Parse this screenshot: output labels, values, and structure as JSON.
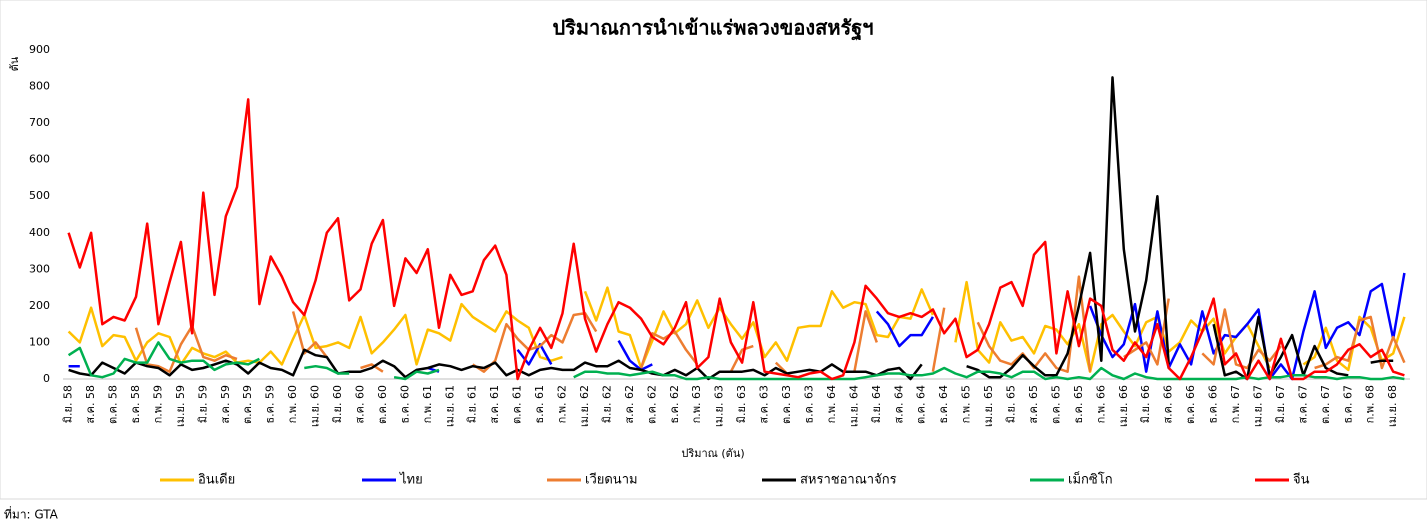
{
  "chart_data": {
    "type": "line",
    "title": "ปริมาณการนำเข้าแร่พลวงของสหรัฐฯ",
    "y_unit": "ตัน",
    "x_label": "ปริมาณ (ตัน)",
    "source": "ที่มา: GTA",
    "ylim": [
      0,
      900
    ],
    "yticks": [
      0,
      100,
      200,
      300,
      400,
      500,
      600,
      700,
      800,
      900
    ],
    "grid": false,
    "legend": "bottom",
    "categories": [
      "มิ.ย. 58",
      null,
      "ส.ค. 58",
      null,
      "ต.ค. 58",
      null,
      "ธ.ค. 58",
      null,
      "ก.พ. 59",
      null,
      "เม.ย. 59",
      null,
      "มิ.ย. 59",
      null,
      "ส.ค. 59",
      null,
      "ต.ค. 59",
      null,
      "ธ.ค. 59",
      null,
      "ก.พ. 60",
      null,
      "เม.ย. 60",
      null,
      "มิ.ย. 60",
      null,
      "ส.ค. 60",
      null,
      "ต.ค. 60",
      null,
      "ธ.ค. 60",
      null,
      "ก.พ. 61",
      null,
      "เม.ย. 61",
      null,
      "มิ.ย. 61",
      null,
      "ส.ค. 61",
      null,
      "ต.ค. 61",
      null,
      "ธ.ค. 61",
      null,
      "ก.พ. 62",
      null,
      "เม.ย. 62",
      null,
      "มิ.ย. 62",
      null,
      "ส.ค. 62",
      null,
      "ต.ค. 62",
      null,
      "ธ.ค. 62",
      null,
      "ก.พ. 63",
      null,
      "เม.ย. 63",
      null,
      "มิ.ย. 63",
      null,
      "ส.ค. 63",
      null,
      "ต.ค. 63",
      null,
      "ธ.ค. 63",
      null,
      "ก.พ. 64",
      null,
      "เม.ย. 64",
      null,
      "มิ.ย. 64",
      null,
      "ส.ค. 64",
      null,
      "ต.ค. 64",
      null,
      "ธ.ค. 64",
      null,
      "ก.พ. 65",
      null,
      "เม.ย. 65",
      null,
      "มิ.ย. 65",
      null,
      "ส.ค. 65",
      null,
      "ต.ค. 65",
      null,
      "ธ.ค. 65",
      null,
      "ก.พ. 66",
      null,
      "เม.ย. 66",
      null,
      "มิ.ย. 66",
      null,
      "ส.ค. 66",
      null,
      "ต.ค. 66",
      null,
      "ธ.ค. 66",
      null,
      "ก.พ. 67",
      null,
      "เม.ย. 67",
      null,
      "มิ.ย. 67",
      null,
      "ส.ค. 67",
      null,
      "ต.ค. 67",
      null,
      "ธ.ค. 67",
      null,
      "ก.พ. 68",
      null,
      "เม.ย. 68",
      null
    ],
    "series": [
      {
        "name": "อินเดีย",
        "color": "#ffc000",
        "values": [
          130,
          100,
          195,
          90,
          120,
          115,
          50,
          100,
          125,
          115,
          40,
          85,
          70,
          60,
          75,
          45,
          50,
          45,
          75,
          40,
          110,
          175,
          85,
          90,
          100,
          85,
          170,
          70,
          100,
          135,
          175,
          40,
          135,
          125,
          105,
          205,
          170,
          150,
          130,
          185,
          160,
          140,
          60,
          50,
          60,
          null,
          240,
          160,
          250,
          130,
          120,
          30,
          105,
          185,
          125,
          150,
          215,
          140,
          195,
          150,
          110,
          155,
          60,
          100,
          50,
          140,
          145,
          145,
          240,
          195,
          210,
          205,
          120,
          115,
          170,
          165,
          245,
          175,
          null,
          100,
          265,
          80,
          45,
          155,
          105,
          115,
          70,
          145,
          135,
          95,
          150,
          20,
          150,
          175,
          130,
          90,
          155,
          170,
          75,
          100,
          160,
          130,
          165,
          70,
          115,
          150,
          90,
          30,
          null,
          null,
          40,
          60,
          140,
          50,
          25,
          170,
          140,
          50,
          70,
          170
        ]
      },
      {
        "name": "ไทย",
        "color": "#0000ff",
        "values": [
          35,
          35,
          null,
          null,
          null,
          null,
          null,
          null,
          null,
          null,
          null,
          null,
          null,
          null,
          null,
          null,
          null,
          null,
          null,
          null,
          null,
          null,
          null,
          null,
          null,
          null,
          null,
          null,
          null,
          null,
          null,
          null,
          30,
          20,
          null,
          null,
          null,
          null,
          null,
          null,
          80,
          40,
          95,
          40,
          null,
          null,
          null,
          null,
          null,
          105,
          50,
          25,
          40,
          null,
          null,
          null,
          null,
          null,
          null,
          null,
          null,
          null,
          null,
          null,
          null,
          null,
          null,
          null,
          null,
          null,
          null,
          null,
          185,
          150,
          90,
          120,
          120,
          170,
          null,
          null,
          null,
          null,
          null,
          null,
          null,
          null,
          null,
          null,
          null,
          null,
          null,
          200,
          120,
          60,
          95,
          205,
          20,
          185,
          30,
          95,
          40,
          185,
          70,
          120,
          115,
          150,
          190,
          0,
          40,
          0,
          130,
          240,
          85,
          140,
          155,
          120,
          240,
          260,
          110,
          290
        ]
      },
      {
        "name": "เวียดนาม",
        "color": "#ed7d31",
        "values": [
          null,
          null,
          null,
          null,
          null,
          null,
          140,
          40,
          35,
          20,
          95,
          145,
          60,
          50,
          65,
          55,
          null,
          null,
          null,
          null,
          185,
          70,
          100,
          60,
          null,
          null,
          30,
          40,
          20,
          null,
          null,
          null,
          null,
          null,
          null,
          null,
          40,
          20,
          50,
          150,
          110,
          80,
          90,
          120,
          100,
          175,
          180,
          130,
          null,
          null,
          null,
          30,
          125,
          110,
          130,
          80,
          40,
          null,
          null,
          20,
          80,
          90,
          null,
          45,
          15,
          null,
          null,
          100,
          null,
          null,
          20,
          185,
          100,
          null,
          null,
          null,
          null,
          20,
          195,
          null,
          null,
          155,
          90,
          50,
          40,
          70,
          30,
          70,
          30,
          20,
          280,
          20,
          null,
          null,
          60,
          80,
          100,
          40,
          220,
          null,
          null,
          70,
          40,
          190,
          40,
          30,
          80,
          50,
          90,
          null,
          null,
          30,
          40,
          60,
          50,
          160,
          170,
          30,
          115,
          45
        ]
      },
      {
        "name": "สหราชอาณาจักร",
        "color": "#000000",
        "values": [
          25,
          15,
          10,
          45,
          30,
          15,
          45,
          35,
          30,
          10,
          40,
          25,
          30,
          40,
          50,
          40,
          15,
          45,
          30,
          25,
          10,
          80,
          65,
          60,
          15,
          20,
          20,
          30,
          50,
          35,
          5,
          25,
          30,
          40,
          35,
          25,
          35,
          30,
          45,
          10,
          25,
          10,
          25,
          30,
          25,
          25,
          45,
          35,
          35,
          50,
          30,
          25,
          15,
          10,
          25,
          10,
          30,
          0,
          20,
          20,
          20,
          25,
          10,
          30,
          15,
          20,
          25,
          20,
          40,
          20,
          20,
          20,
          10,
          25,
          30,
          0,
          40,
          null,
          null,
          null,
          35,
          25,
          5,
          5,
          30,
          65,
          35,
          10,
          10,
          70,
          200,
          345,
          50,
          825,
          355,
          130,
          270,
          500,
          40,
          null,
          null,
          null,
          150,
          10,
          20,
          0,
          170,
          10,
          60,
          120,
          10,
          90,
          30,
          15,
          10,
          null,
          45,
          50,
          50,
          null
        ]
      },
      {
        "name": "เม็กซิโก",
        "color": "#00b050",
        "values": [
          65,
          85,
          10,
          5,
          15,
          55,
          45,
          45,
          100,
          55,
          45,
          50,
          50,
          25,
          40,
          45,
          40,
          55,
          null,
          null,
          null,
          30,
          35,
          30,
          15,
          15,
          null,
          null,
          null,
          5,
          0,
          20,
          15,
          25,
          null,
          null,
          null,
          null,
          null,
          null,
          null,
          null,
          null,
          null,
          null,
          5,
          20,
          20,
          15,
          15,
          10,
          15,
          20,
          10,
          10,
          0,
          0,
          5,
          0,
          0,
          0,
          0,
          0,
          0,
          0,
          0,
          0,
          0,
          0,
          0,
          0,
          5,
          10,
          15,
          15,
          10,
          10,
          15,
          30,
          15,
          5,
          20,
          20,
          15,
          5,
          20,
          20,
          0,
          5,
          0,
          5,
          0,
          30,
          10,
          0,
          15,
          5,
          0,
          0,
          0,
          0,
          0,
          0,
          0,
          0,
          5,
          0,
          5,
          5,
          10,
          10,
          5,
          5,
          0,
          5,
          5,
          0,
          0,
          5,
          0
        ]
      },
      {
        "name": "จีน",
        "color": "#ff0000",
        "values": [
          400,
          305,
          400,
          150,
          170,
          160,
          225,
          425,
          150,
          265,
          375,
          125,
          510,
          230,
          445,
          525,
          765,
          205,
          335,
          280,
          210,
          175,
          270,
          400,
          440,
          215,
          245,
          370,
          435,
          200,
          330,
          290,
          355,
          140,
          285,
          230,
          240,
          325,
          365,
          285,
          0,
          80,
          140,
          85,
          180,
          370,
          165,
          75,
          150,
          210,
          195,
          165,
          115,
          95,
          140,
          210,
          30,
          60,
          220,
          100,
          45,
          210,
          20,
          15,
          10,
          5,
          15,
          20,
          0,
          10,
          100,
          255,
          220,
          180,
          170,
          180,
          170,
          190,
          125,
          165,
          60,
          80,
          150,
          250,
          265,
          200,
          340,
          375,
          70,
          240,
          90,
          220,
          200,
          80,
          50,
          100,
          60,
          150,
          30,
          0,
          60,
          130,
          220,
          40,
          70,
          0,
          50,
          0,
          110,
          0,
          0,
          20,
          20,
          40,
          80,
          95,
          60,
          80,
          20,
          10
        ]
      }
    ]
  }
}
